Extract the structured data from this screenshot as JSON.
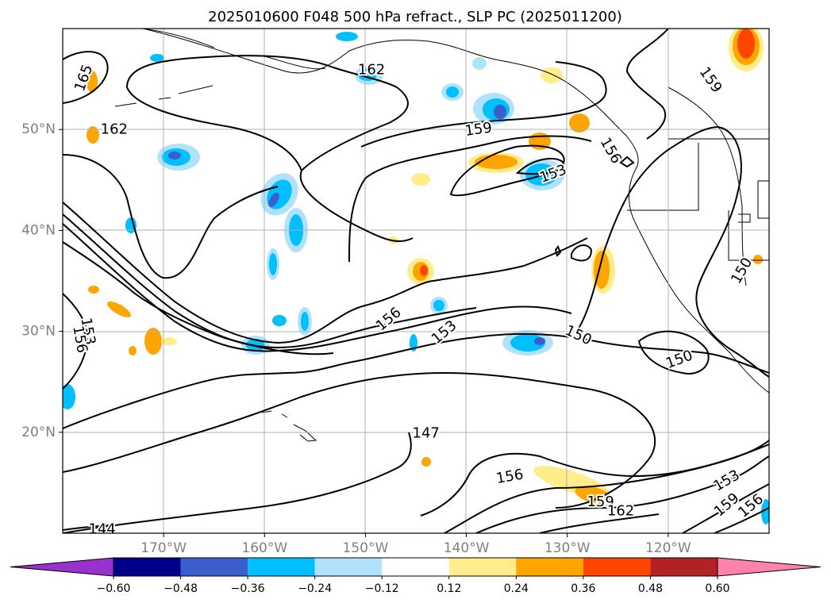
{
  "chart_data": {
    "type": "map",
    "title": "2025010600 F048 500 hPa refract., SLP PC (2025011200)",
    "x_tick_labels": [
      "170°W",
      "160°W",
      "150°W",
      "140°W",
      "130°W",
      "120°W"
    ],
    "x_tick_values": [
      -170,
      -160,
      -150,
      -140,
      -130,
      -120
    ],
    "y_tick_labels": [
      "20°N",
      "30°N",
      "40°N",
      "50°N"
    ],
    "y_tick_values": [
      20,
      30,
      40,
      50
    ],
    "lon_range": [
      -180,
      -110
    ],
    "lat_range": [
      10,
      60
    ],
    "contour_labels": [
      {
        "text": "165",
        "lon": -177.9,
        "lat": 55.1,
        "rot": -70
      },
      {
        "text": "162",
        "lon": -174.9,
        "lat": 50.0,
        "rot": 0
      },
      {
        "text": "162",
        "lon": -149.4,
        "lat": 55.9,
        "rot": 0
      },
      {
        "text": "159",
        "lon": -138.8,
        "lat": 50.0,
        "rot": -8
      },
      {
        "text": "156",
        "lon": -125.7,
        "lat": 47.9,
        "rot": 60
      },
      {
        "text": "153",
        "lon": -131.4,
        "lat": 45.6,
        "rot": -20
      },
      {
        "text": "159",
        "lon": -115.8,
        "lat": 54.9,
        "rot": 55
      },
      {
        "text": "150",
        "lon": -112.7,
        "lat": 36.0,
        "rot": -60
      },
      {
        "text": "153",
        "lon": -177.5,
        "lat": 30.0,
        "rot": 80
      },
      {
        "text": "156",
        "lon": -178.3,
        "lat": 29.2,
        "rot": 80
      },
      {
        "text": "156",
        "lon": -147.7,
        "lat": 31.2,
        "rot": -40
      },
      {
        "text": "153",
        "lon": -142.2,
        "lat": 29.9,
        "rot": -40
      },
      {
        "text": "150",
        "lon": -128.9,
        "lat": 29.6,
        "rot": 25
      },
      {
        "text": "150",
        "lon": -118.9,
        "lat": 27.2,
        "rot": -20
      },
      {
        "text": "147",
        "lon": -144.0,
        "lat": 19.9,
        "rot": 0
      },
      {
        "text": "156",
        "lon": -135.7,
        "lat": 15.6,
        "rot": -10
      },
      {
        "text": "159",
        "lon": -126.7,
        "lat": 13.1,
        "rot": 0
      },
      {
        "text": "162",
        "lon": -124.7,
        "lat": 12.2,
        "rot": 0
      },
      {
        "text": "153",
        "lon": -114.2,
        "lat": 15.2,
        "rot": -30
      },
      {
        "text": "159",
        "lon": -114.2,
        "lat": 12.8,
        "rot": -40
      },
      {
        "text": "156",
        "lon": -111.8,
        "lat": 12.7,
        "rot": -40
      },
      {
        "text": "144",
        "lon": -176.1,
        "lat": 10.4,
        "rot": 0
      }
    ],
    "colorbar": {
      "levels": [
        "−0.60",
        "−0.48",
        "−0.36",
        "−0.24",
        "−0.12",
        "0.12",
        "0.24",
        "0.36",
        "0.48",
        "0.60"
      ],
      "colors": [
        "#9932CC",
        "#00008B",
        "#3A5FCD",
        "#00BFFF",
        "#B0E2FF",
        "#FFFFFF",
        "#FFEC8B",
        "#FFA500",
        "#FF4500",
        "#B22222",
        "#FF82AB"
      ]
    }
  }
}
